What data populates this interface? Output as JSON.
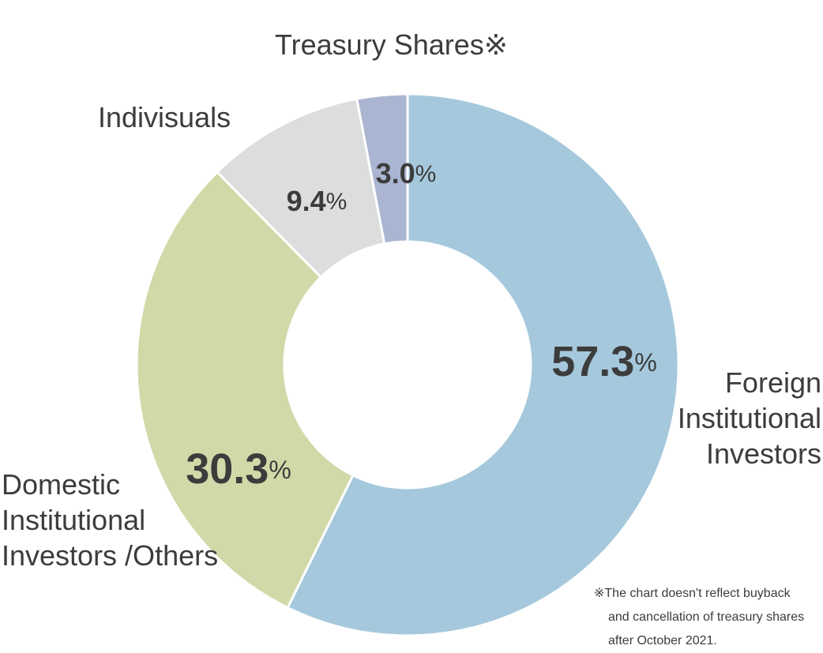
{
  "chart_data": {
    "type": "pie",
    "donut": true,
    "unit": "%",
    "slices": [
      {
        "label_lines": [
          "Foreign",
          "Institutional",
          "Investors"
        ],
        "value": 57.3,
        "color": "#a5c8dc"
      },
      {
        "label_lines": [
          "Domestic",
          "Institutional",
          "Investors /Others"
        ],
        "value": 30.3,
        "color": "#d1d9a8"
      },
      {
        "label_lines": [
          "Indivisuals"
        ],
        "value": 9.4,
        "color": "#dcdedd"
      },
      {
        "label_lines": [
          "Treasury Shares※"
        ],
        "value": 3.0,
        "color": "#aab5d1"
      }
    ]
  },
  "note": {
    "lines": [
      "※The chart doesn't reflect buyback",
      "and cancellation of treasury shares",
      "after October 2021."
    ]
  }
}
